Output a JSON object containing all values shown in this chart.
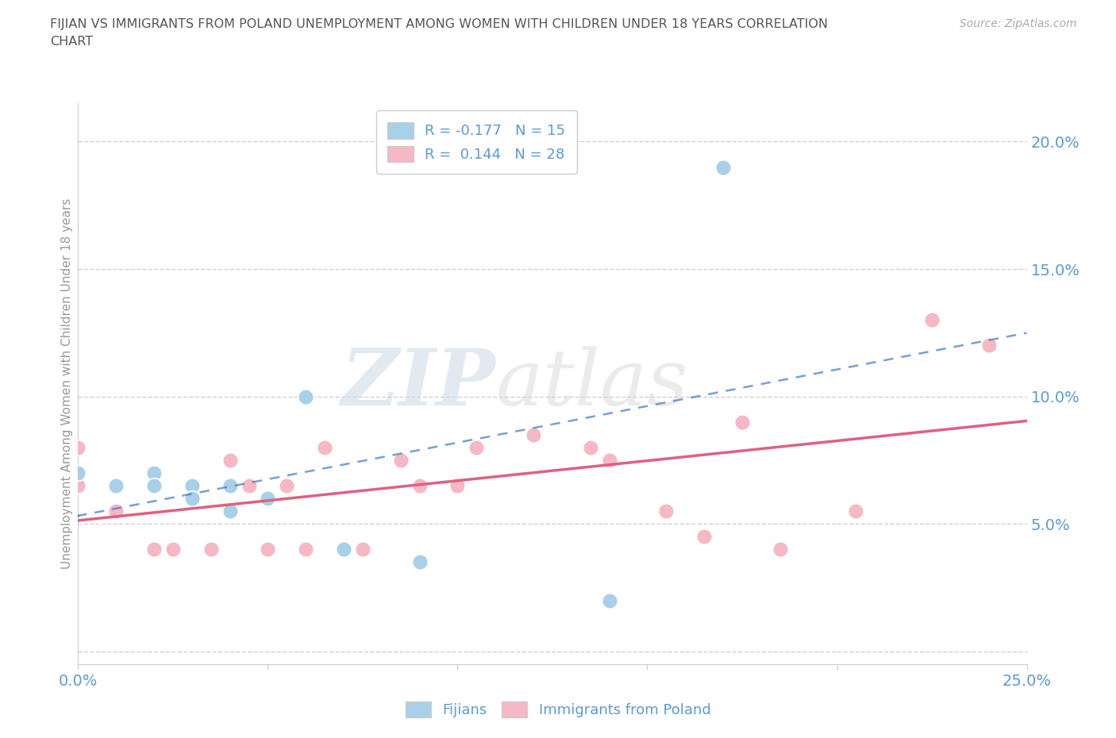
{
  "title": "FIJIAN VS IMMIGRANTS FROM POLAND UNEMPLOYMENT AMONG WOMEN WITH CHILDREN UNDER 18 YEARS CORRELATION\nCHART",
  "source": "Source: ZipAtlas.com",
  "ylabel": "Unemployment Among Women with Children Under 18 years",
  "xlim": [
    0.0,
    0.25
  ],
  "ylim": [
    -0.005,
    0.215
  ],
  "xticks": [
    0.0,
    0.05,
    0.1,
    0.15,
    0.2,
    0.25
  ],
  "yticks": [
    0.0,
    0.05,
    0.1,
    0.15,
    0.2
  ],
  "ytick_labels": [
    "",
    "5.0%",
    "10.0%",
    "15.0%",
    "20.0%"
  ],
  "xtick_labels": [
    "0.0%",
    "",
    "",
    "",
    "",
    "25.0%"
  ],
  "fijian_color": "#a8d0e8",
  "poland_color": "#f5b8c4",
  "fijian_R": -0.177,
  "fijian_N": 15,
  "poland_R": 0.144,
  "poland_N": 28,
  "fijian_scatter_x": [
    0.0,
    0.01,
    0.02,
    0.02,
    0.02,
    0.03,
    0.03,
    0.04,
    0.04,
    0.05,
    0.06,
    0.07,
    0.09,
    0.14,
    0.17
  ],
  "fijian_scatter_y": [
    0.07,
    0.065,
    0.065,
    0.07,
    0.065,
    0.065,
    0.06,
    0.065,
    0.055,
    0.06,
    0.1,
    0.04,
    0.035,
    0.02,
    0.19
  ],
  "poland_scatter_x": [
    0.0,
    0.0,
    0.01,
    0.02,
    0.025,
    0.03,
    0.035,
    0.04,
    0.045,
    0.05,
    0.055,
    0.06,
    0.065,
    0.075,
    0.085,
    0.09,
    0.1,
    0.105,
    0.12,
    0.135,
    0.14,
    0.155,
    0.165,
    0.175,
    0.185,
    0.205,
    0.225,
    0.24
  ],
  "poland_scatter_y": [
    0.065,
    0.08,
    0.055,
    0.04,
    0.04,
    0.065,
    0.04,
    0.075,
    0.065,
    0.04,
    0.065,
    0.04,
    0.08,
    0.04,
    0.075,
    0.065,
    0.065,
    0.08,
    0.085,
    0.08,
    0.075,
    0.055,
    0.045,
    0.09,
    0.04,
    0.055,
    0.13,
    0.12
  ],
  "fijian_line_color": "#3a78c9",
  "poland_line_color": "#e06080",
  "watermark_zip": "ZIP",
  "watermark_atlas": "atlas",
  "background_color": "#ffffff",
  "grid_color": "#cccccc",
  "axis_color": "#cccccc",
  "tick_label_color": "#5b9bd5",
  "title_color": "#555555",
  "legend_fijian_r": "R = -0.177",
  "legend_fijian_n": "N = 15",
  "legend_poland_r": "R =  0.144",
  "legend_poland_n": "N = 28"
}
